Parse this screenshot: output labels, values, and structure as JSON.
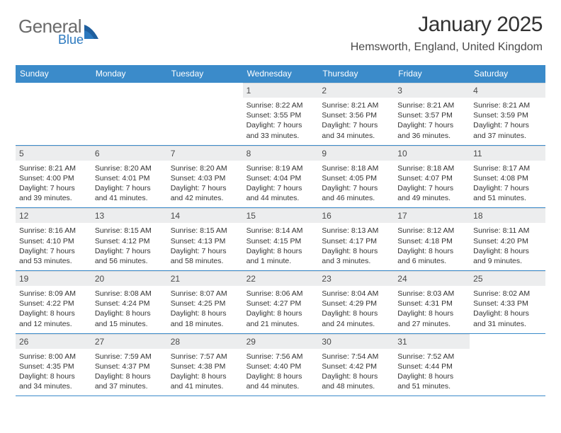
{
  "brand": {
    "general": "General",
    "blue": "Blue",
    "accent": "#2b79bf"
  },
  "title": {
    "month": "January 2025",
    "location": "Hemsworth, England, United Kingdom"
  },
  "colors": {
    "header_bg": "#3b8bca",
    "header_fg": "#ffffff",
    "daynum_bg": "#ecedee",
    "text": "#333333",
    "rule": "#3b8bca"
  },
  "dow": [
    "Sunday",
    "Monday",
    "Tuesday",
    "Wednesday",
    "Thursday",
    "Friday",
    "Saturday"
  ],
  "weeks": [
    [
      null,
      null,
      null,
      {
        "n": "1",
        "sr": "8:22 AM",
        "ss": "3:55 PM",
        "dl": "7 hours",
        "dl2": "and 33 minutes."
      },
      {
        "n": "2",
        "sr": "8:21 AM",
        "ss": "3:56 PM",
        "dl": "7 hours",
        "dl2": "and 34 minutes."
      },
      {
        "n": "3",
        "sr": "8:21 AM",
        "ss": "3:57 PM",
        "dl": "7 hours",
        "dl2": "and 36 minutes."
      },
      {
        "n": "4",
        "sr": "8:21 AM",
        "ss": "3:59 PM",
        "dl": "7 hours",
        "dl2": "and 37 minutes."
      }
    ],
    [
      {
        "n": "5",
        "sr": "8:21 AM",
        "ss": "4:00 PM",
        "dl": "7 hours",
        "dl2": "and 39 minutes."
      },
      {
        "n": "6",
        "sr": "8:20 AM",
        "ss": "4:01 PM",
        "dl": "7 hours",
        "dl2": "and 41 minutes."
      },
      {
        "n": "7",
        "sr": "8:20 AM",
        "ss": "4:03 PM",
        "dl": "7 hours",
        "dl2": "and 42 minutes."
      },
      {
        "n": "8",
        "sr": "8:19 AM",
        "ss": "4:04 PM",
        "dl": "7 hours",
        "dl2": "and 44 minutes."
      },
      {
        "n": "9",
        "sr": "8:18 AM",
        "ss": "4:05 PM",
        "dl": "7 hours",
        "dl2": "and 46 minutes."
      },
      {
        "n": "10",
        "sr": "8:18 AM",
        "ss": "4:07 PM",
        "dl": "7 hours",
        "dl2": "and 49 minutes."
      },
      {
        "n": "11",
        "sr": "8:17 AM",
        "ss": "4:08 PM",
        "dl": "7 hours",
        "dl2": "and 51 minutes."
      }
    ],
    [
      {
        "n": "12",
        "sr": "8:16 AM",
        "ss": "4:10 PM",
        "dl": "7 hours",
        "dl2": "and 53 minutes."
      },
      {
        "n": "13",
        "sr": "8:15 AM",
        "ss": "4:12 PM",
        "dl": "7 hours",
        "dl2": "and 56 minutes."
      },
      {
        "n": "14",
        "sr": "8:15 AM",
        "ss": "4:13 PM",
        "dl": "7 hours",
        "dl2": "and 58 minutes."
      },
      {
        "n": "15",
        "sr": "8:14 AM",
        "ss": "4:15 PM",
        "dl": "8 hours",
        "dl2": "and 1 minute."
      },
      {
        "n": "16",
        "sr": "8:13 AM",
        "ss": "4:17 PM",
        "dl": "8 hours",
        "dl2": "and 3 minutes."
      },
      {
        "n": "17",
        "sr": "8:12 AM",
        "ss": "4:18 PM",
        "dl": "8 hours",
        "dl2": "and 6 minutes."
      },
      {
        "n": "18",
        "sr": "8:11 AM",
        "ss": "4:20 PM",
        "dl": "8 hours",
        "dl2": "and 9 minutes."
      }
    ],
    [
      {
        "n": "19",
        "sr": "8:09 AM",
        "ss": "4:22 PM",
        "dl": "8 hours",
        "dl2": "and 12 minutes."
      },
      {
        "n": "20",
        "sr": "8:08 AM",
        "ss": "4:24 PM",
        "dl": "8 hours",
        "dl2": "and 15 minutes."
      },
      {
        "n": "21",
        "sr": "8:07 AM",
        "ss": "4:25 PM",
        "dl": "8 hours",
        "dl2": "and 18 minutes."
      },
      {
        "n": "22",
        "sr": "8:06 AM",
        "ss": "4:27 PM",
        "dl": "8 hours",
        "dl2": "and 21 minutes."
      },
      {
        "n": "23",
        "sr": "8:04 AM",
        "ss": "4:29 PM",
        "dl": "8 hours",
        "dl2": "and 24 minutes."
      },
      {
        "n": "24",
        "sr": "8:03 AM",
        "ss": "4:31 PM",
        "dl": "8 hours",
        "dl2": "and 27 minutes."
      },
      {
        "n": "25",
        "sr": "8:02 AM",
        "ss": "4:33 PM",
        "dl": "8 hours",
        "dl2": "and 31 minutes."
      }
    ],
    [
      {
        "n": "26",
        "sr": "8:00 AM",
        "ss": "4:35 PM",
        "dl": "8 hours",
        "dl2": "and 34 minutes."
      },
      {
        "n": "27",
        "sr": "7:59 AM",
        "ss": "4:37 PM",
        "dl": "8 hours",
        "dl2": "and 37 minutes."
      },
      {
        "n": "28",
        "sr": "7:57 AM",
        "ss": "4:38 PM",
        "dl": "8 hours",
        "dl2": "and 41 minutes."
      },
      {
        "n": "29",
        "sr": "7:56 AM",
        "ss": "4:40 PM",
        "dl": "8 hours",
        "dl2": "and 44 minutes."
      },
      {
        "n": "30",
        "sr": "7:54 AM",
        "ss": "4:42 PM",
        "dl": "8 hours",
        "dl2": "and 48 minutes."
      },
      {
        "n": "31",
        "sr": "7:52 AM",
        "ss": "4:44 PM",
        "dl": "8 hours",
        "dl2": "and 51 minutes."
      },
      null
    ]
  ]
}
